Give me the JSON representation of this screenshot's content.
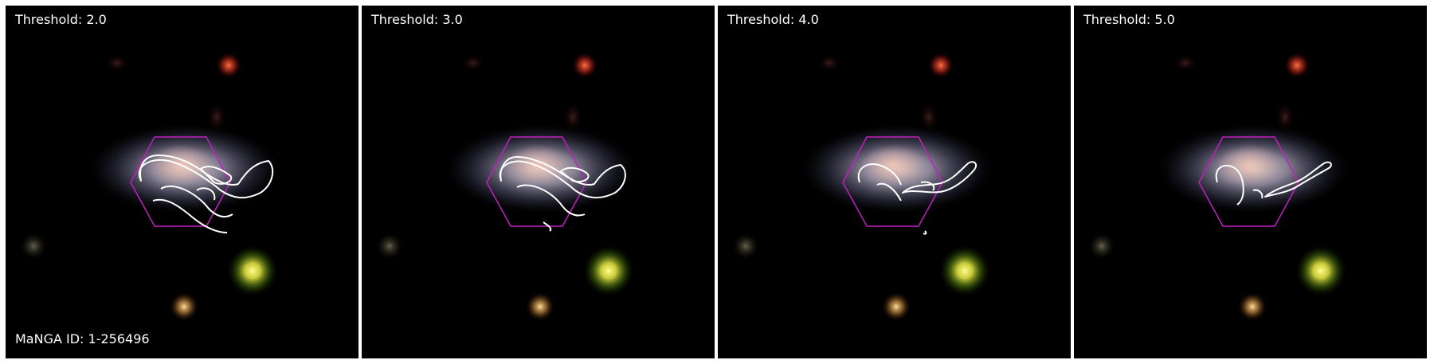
{
  "panels": [
    {
      "threshold_label": "Threshold: 2.0"
    },
    {
      "threshold_label": "Threshold: 3.0"
    },
    {
      "threshold_label": "Threshold: 4.0"
    },
    {
      "threshold_label": "Threshold: 5.0"
    }
  ],
  "galaxy_id_label": "MaNGA ID: 1-256496",
  "colors": {
    "background": "#000000",
    "contour": "#ffffff",
    "ifu_hexagon": "#c020c0",
    "divider": "#ffffff"
  }
}
